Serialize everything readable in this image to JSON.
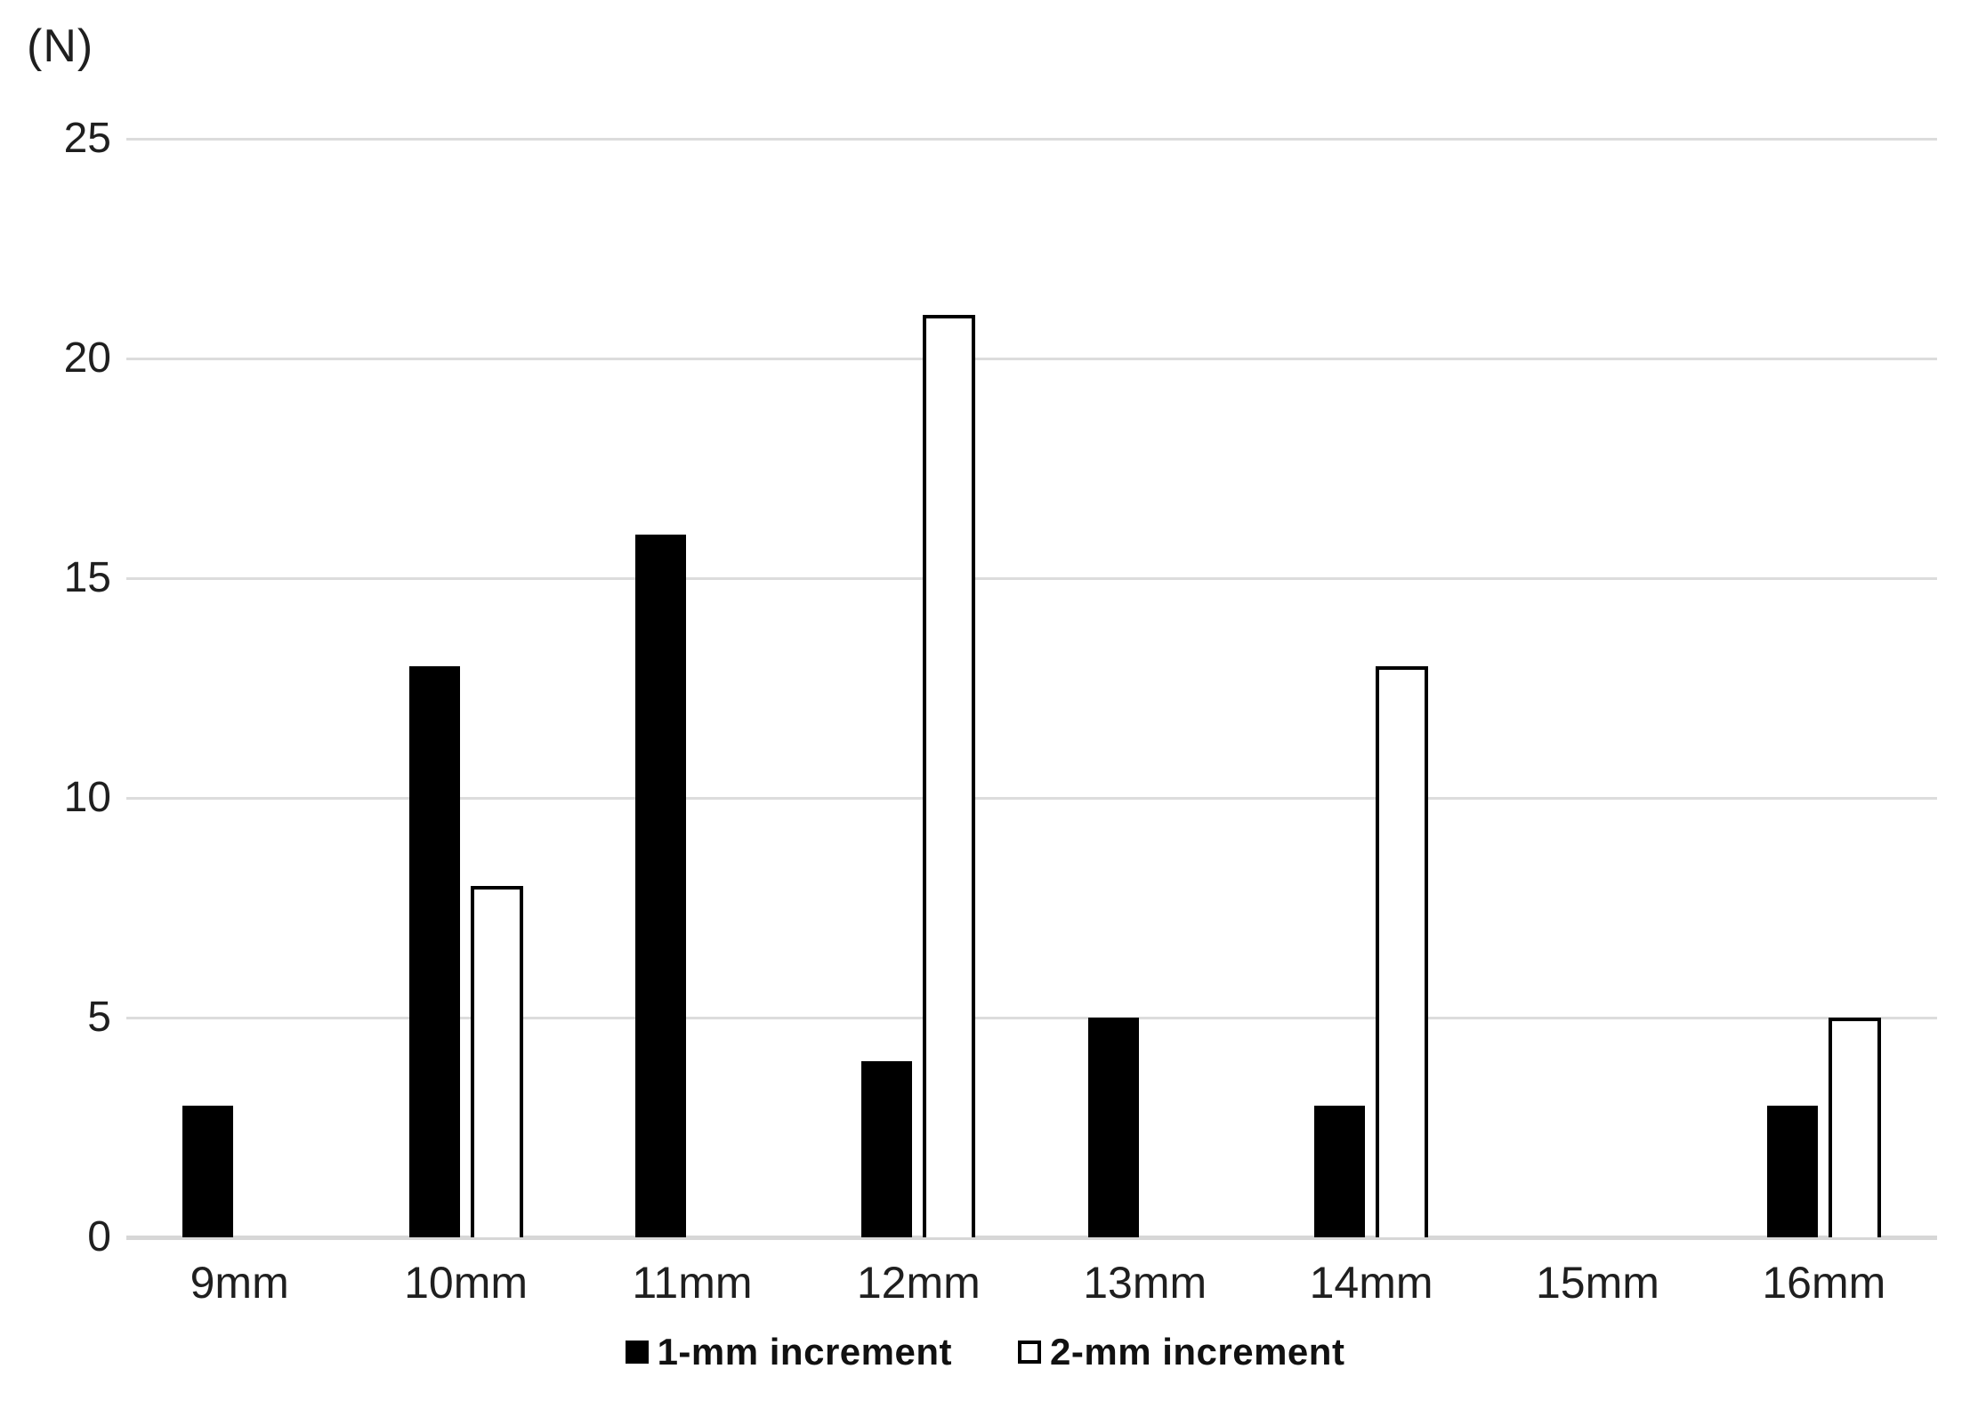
{
  "y_axis_unit_label": "(N)",
  "chart_data": {
    "type": "bar",
    "title": "",
    "xlabel": "",
    "ylabel": "(N)",
    "categories": [
      "9mm",
      "10mm",
      "11mm",
      "12mm",
      "13mm",
      "14mm",
      "15mm",
      "16mm"
    ],
    "series": [
      {
        "name": "1-mm increment",
        "style": "filled-black",
        "values": [
          3,
          13,
          16,
          4,
          5,
          3,
          0,
          3
        ]
      },
      {
        "name": "2-mm increment",
        "style": "white-outlined",
        "values": [
          0,
          8,
          0,
          21,
          0,
          13,
          0,
          5
        ]
      }
    ],
    "ylim": [
      0,
      25
    ],
    "yticks": [
      0,
      5,
      10,
      15,
      20,
      25
    ],
    "grid": true,
    "legend_position": "bottom-center",
    "colors": {
      "bar_fill": "#000000",
      "bar_outline": "#000000",
      "gridline": "#dcdcdc",
      "text": "#1f1f1f",
      "background": "#ffffff"
    }
  }
}
